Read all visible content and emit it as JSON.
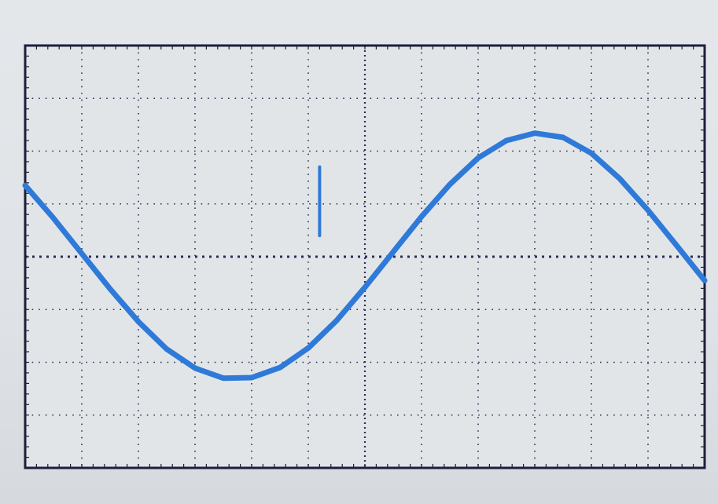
{
  "chart_data": {
    "type": "line",
    "grid": true,
    "divisions": {
      "x": 12,
      "y": 8
    },
    "xlim": [
      0,
      12
    ],
    "ylim": [
      -4,
      4
    ],
    "series": [
      {
        "color": "#2f7ad8",
        "x": [
          0,
          0.5,
          1,
          1.5,
          2,
          2.5,
          3,
          3.5,
          4,
          4.5,
          5,
          5.5,
          6,
          6.5,
          7,
          7.5,
          8,
          8.5,
          9,
          9.5,
          10,
          10.5,
          11,
          11.5,
          12
        ],
        "y": [
          1.35,
          0.73,
          0.06,
          -0.61,
          -1.23,
          -1.75,
          -2.11,
          -2.3,
          -2.29,
          -2.1,
          -1.73,
          -1.21,
          -0.58,
          0.09,
          0.76,
          1.37,
          1.87,
          2.2,
          2.34,
          2.26,
          1.96,
          1.48,
          0.88,
          0.22,
          -0.45
        ]
      }
    ],
    "trigger_marker": {
      "x": 5.2,
      "y_range": [
        0.4,
        1.7
      ],
      "color": "#2f7ad8"
    }
  },
  "colors": {
    "background": "#e2e5e8",
    "frame": "#1c1f3a",
    "grid_dots": "#2a2f55",
    "trace": "#2f7ad8"
  }
}
